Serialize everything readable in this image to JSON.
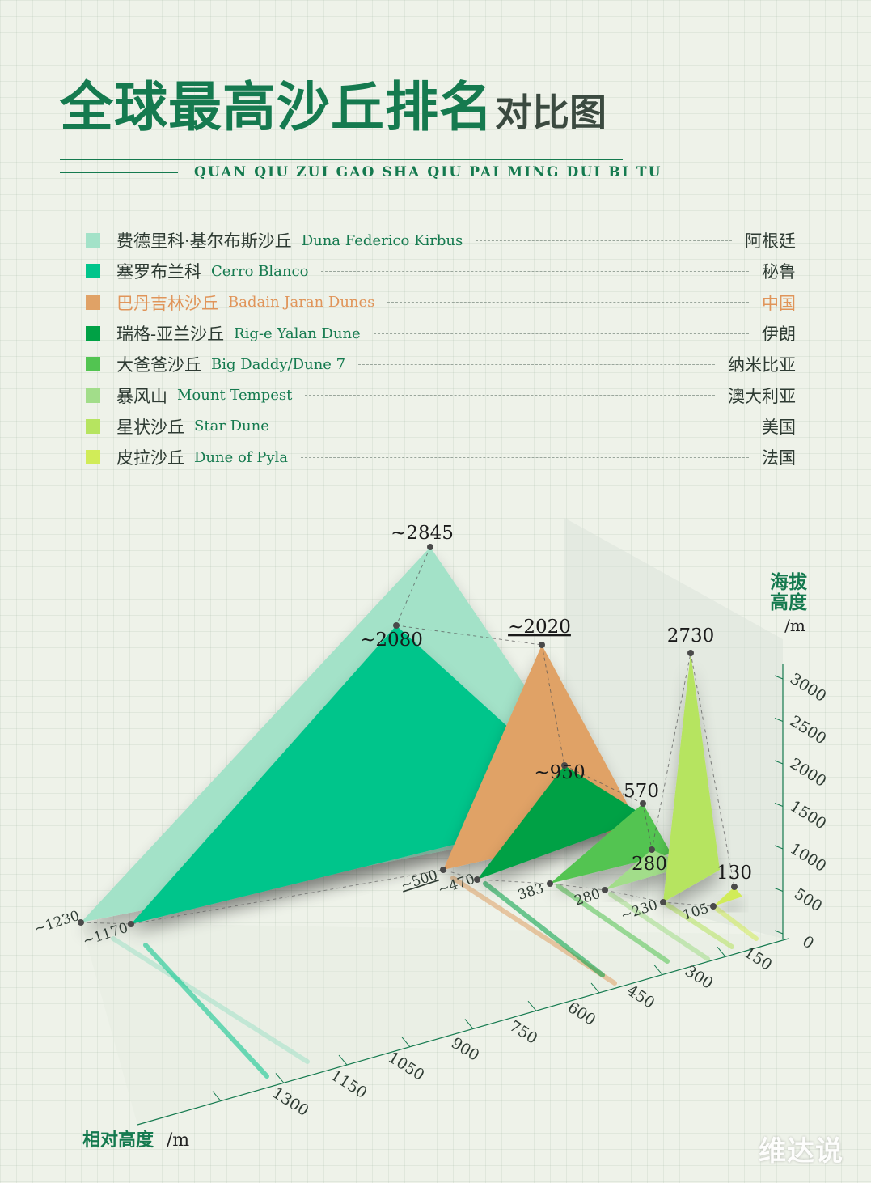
{
  "title": {
    "main": "全球最高沙丘排名",
    "sub": "对比图",
    "pinyin": "QUAN QIU ZUI GAO SHA QIU PAI MING DUI BI TU"
  },
  "colors": {
    "accent": "#157a4f",
    "text": "#2e3b33",
    "highlight": "#e0955a"
  },
  "legend": [
    {
      "zh": "费德里科·基尔布斯沙丘",
      "en": "Duna Federico Kirbus",
      "country": "阿根廷",
      "color": "#a3e2c8"
    },
    {
      "zh": "塞罗布兰科",
      "en": "Cerro Blanco",
      "country": "秘鲁",
      "color": "#00c58b"
    },
    {
      "zh": "巴丹吉林沙丘",
      "en": "Badain Jaran Dunes",
      "country": "中国",
      "color": "#e0a266",
      "highlight": true
    },
    {
      "zh": "瑞格-亚兰沙丘",
      "en": "Rig-e Yalan Dune",
      "country": "伊朗",
      "color": "#00a145"
    },
    {
      "zh": "大爸爸沙丘",
      "en": "Big Daddy/Dune 7",
      "country": "纳米比亚",
      "color": "#52c451"
    },
    {
      "zh": "暴风山",
      "en": "Mount Tempest",
      "country": "澳大利亚",
      "color": "#a2dd8a"
    },
    {
      "zh": "星状沙丘",
      "en": "Star Dune",
      "country": "美国",
      "color": "#b6e460"
    },
    {
      "zh": "皮拉沙丘",
      "en": "Dune of Pyla",
      "country": "法国",
      "color": "#d1ec58"
    }
  ],
  "chart_data": {
    "type": "3d-triangle",
    "series": [
      {
        "name": "费德里科·基尔布斯沙丘",
        "altitude": 2845,
        "altitude_label": "~2845",
        "relative": 1230,
        "relative_label": "~1230"
      },
      {
        "name": "塞罗布兰科",
        "altitude": 2080,
        "altitude_label": "~2080",
        "relative": 1170,
        "relative_label": "~1170"
      },
      {
        "name": "巴丹吉林沙丘",
        "altitude": 2020,
        "altitude_label": "~2020",
        "relative": 500,
        "relative_label": "~500"
      },
      {
        "name": "瑞格-亚兰沙丘",
        "altitude": 950,
        "altitude_label": "~950",
        "relative": 470,
        "relative_label": "~470"
      },
      {
        "name": "大爸爸沙丘",
        "altitude": 570,
        "altitude_label": "570",
        "relative": 383,
        "relative_label": "383"
      },
      {
        "name": "暴风山",
        "altitude": 280,
        "altitude_label": "280",
        "relative": 280,
        "relative_label": "280"
      },
      {
        "name": "星状沙丘",
        "altitude": 2730,
        "altitude_label": "2730",
        "relative": 230,
        "relative_label": "~230"
      },
      {
        "name": "皮拉沙丘",
        "altitude": 130,
        "altitude_label": "130",
        "relative": 105,
        "relative_label": "105"
      }
    ],
    "y_axis": {
      "label_line1": "海拔",
      "label_line2": "高度",
      "unit": "/m",
      "ticks": [
        "3000",
        "2500",
        "2000",
        "1500",
        "1000",
        "500",
        "0"
      ],
      "range": [
        0,
        3000
      ]
    },
    "x_axis": {
      "label": "相对高度",
      "unit": "/m",
      "ticks": [
        "150",
        "300",
        "450",
        "600",
        "750",
        "900",
        "1050",
        "1150",
        "1300"
      ]
    }
  },
  "watermark": "维达说"
}
